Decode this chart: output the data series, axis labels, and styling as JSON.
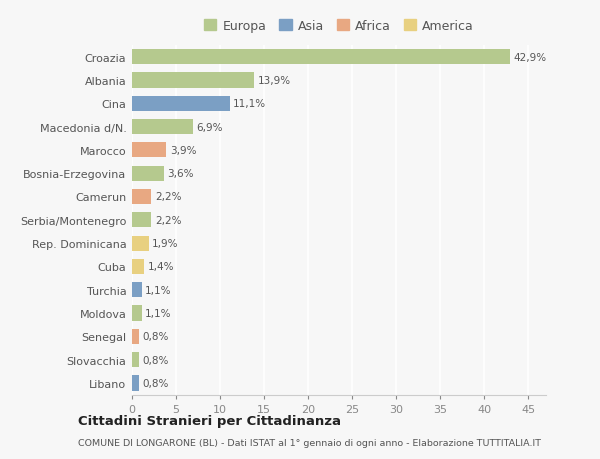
{
  "countries": [
    "Croazia",
    "Albania",
    "Cina",
    "Macedonia d/N.",
    "Marocco",
    "Bosnia-Erzegovina",
    "Camerun",
    "Serbia/Montenegro",
    "Rep. Dominicana",
    "Cuba",
    "Turchia",
    "Moldova",
    "Senegal",
    "Slovacchia",
    "Libano"
  ],
  "values": [
    42.9,
    13.9,
    11.1,
    6.9,
    3.9,
    3.6,
    2.2,
    2.2,
    1.9,
    1.4,
    1.1,
    1.1,
    0.8,
    0.8,
    0.8
  ],
  "labels": [
    "42,9%",
    "13,9%",
    "11,1%",
    "6,9%",
    "3,9%",
    "3,6%",
    "2,2%",
    "2,2%",
    "1,9%",
    "1,4%",
    "1,1%",
    "1,1%",
    "0,8%",
    "0,8%",
    "0,8%"
  ],
  "continents": [
    "Europa",
    "Europa",
    "Asia",
    "Europa",
    "Africa",
    "Europa",
    "Africa",
    "Europa",
    "America",
    "America",
    "Asia",
    "Europa",
    "Africa",
    "Europa",
    "Asia"
  ],
  "continent_colors": {
    "Europa": "#b5c98e",
    "Asia": "#7b9fc4",
    "Africa": "#e8a882",
    "America": "#e8d080"
  },
  "legend_order": [
    "Europa",
    "Asia",
    "Africa",
    "America"
  ],
  "background_color": "#f7f7f7",
  "title": "Cittadini Stranieri per Cittadinanza",
  "subtitle": "COMUNE DI LONGARONE (BL) - Dati ISTAT al 1° gennaio di ogni anno - Elaborazione TUTTITALIA.IT",
  "xlabel_values": [
    0,
    5,
    10,
    15,
    20,
    25,
    30,
    35,
    40,
    45
  ],
  "xlim": [
    0,
    47
  ]
}
